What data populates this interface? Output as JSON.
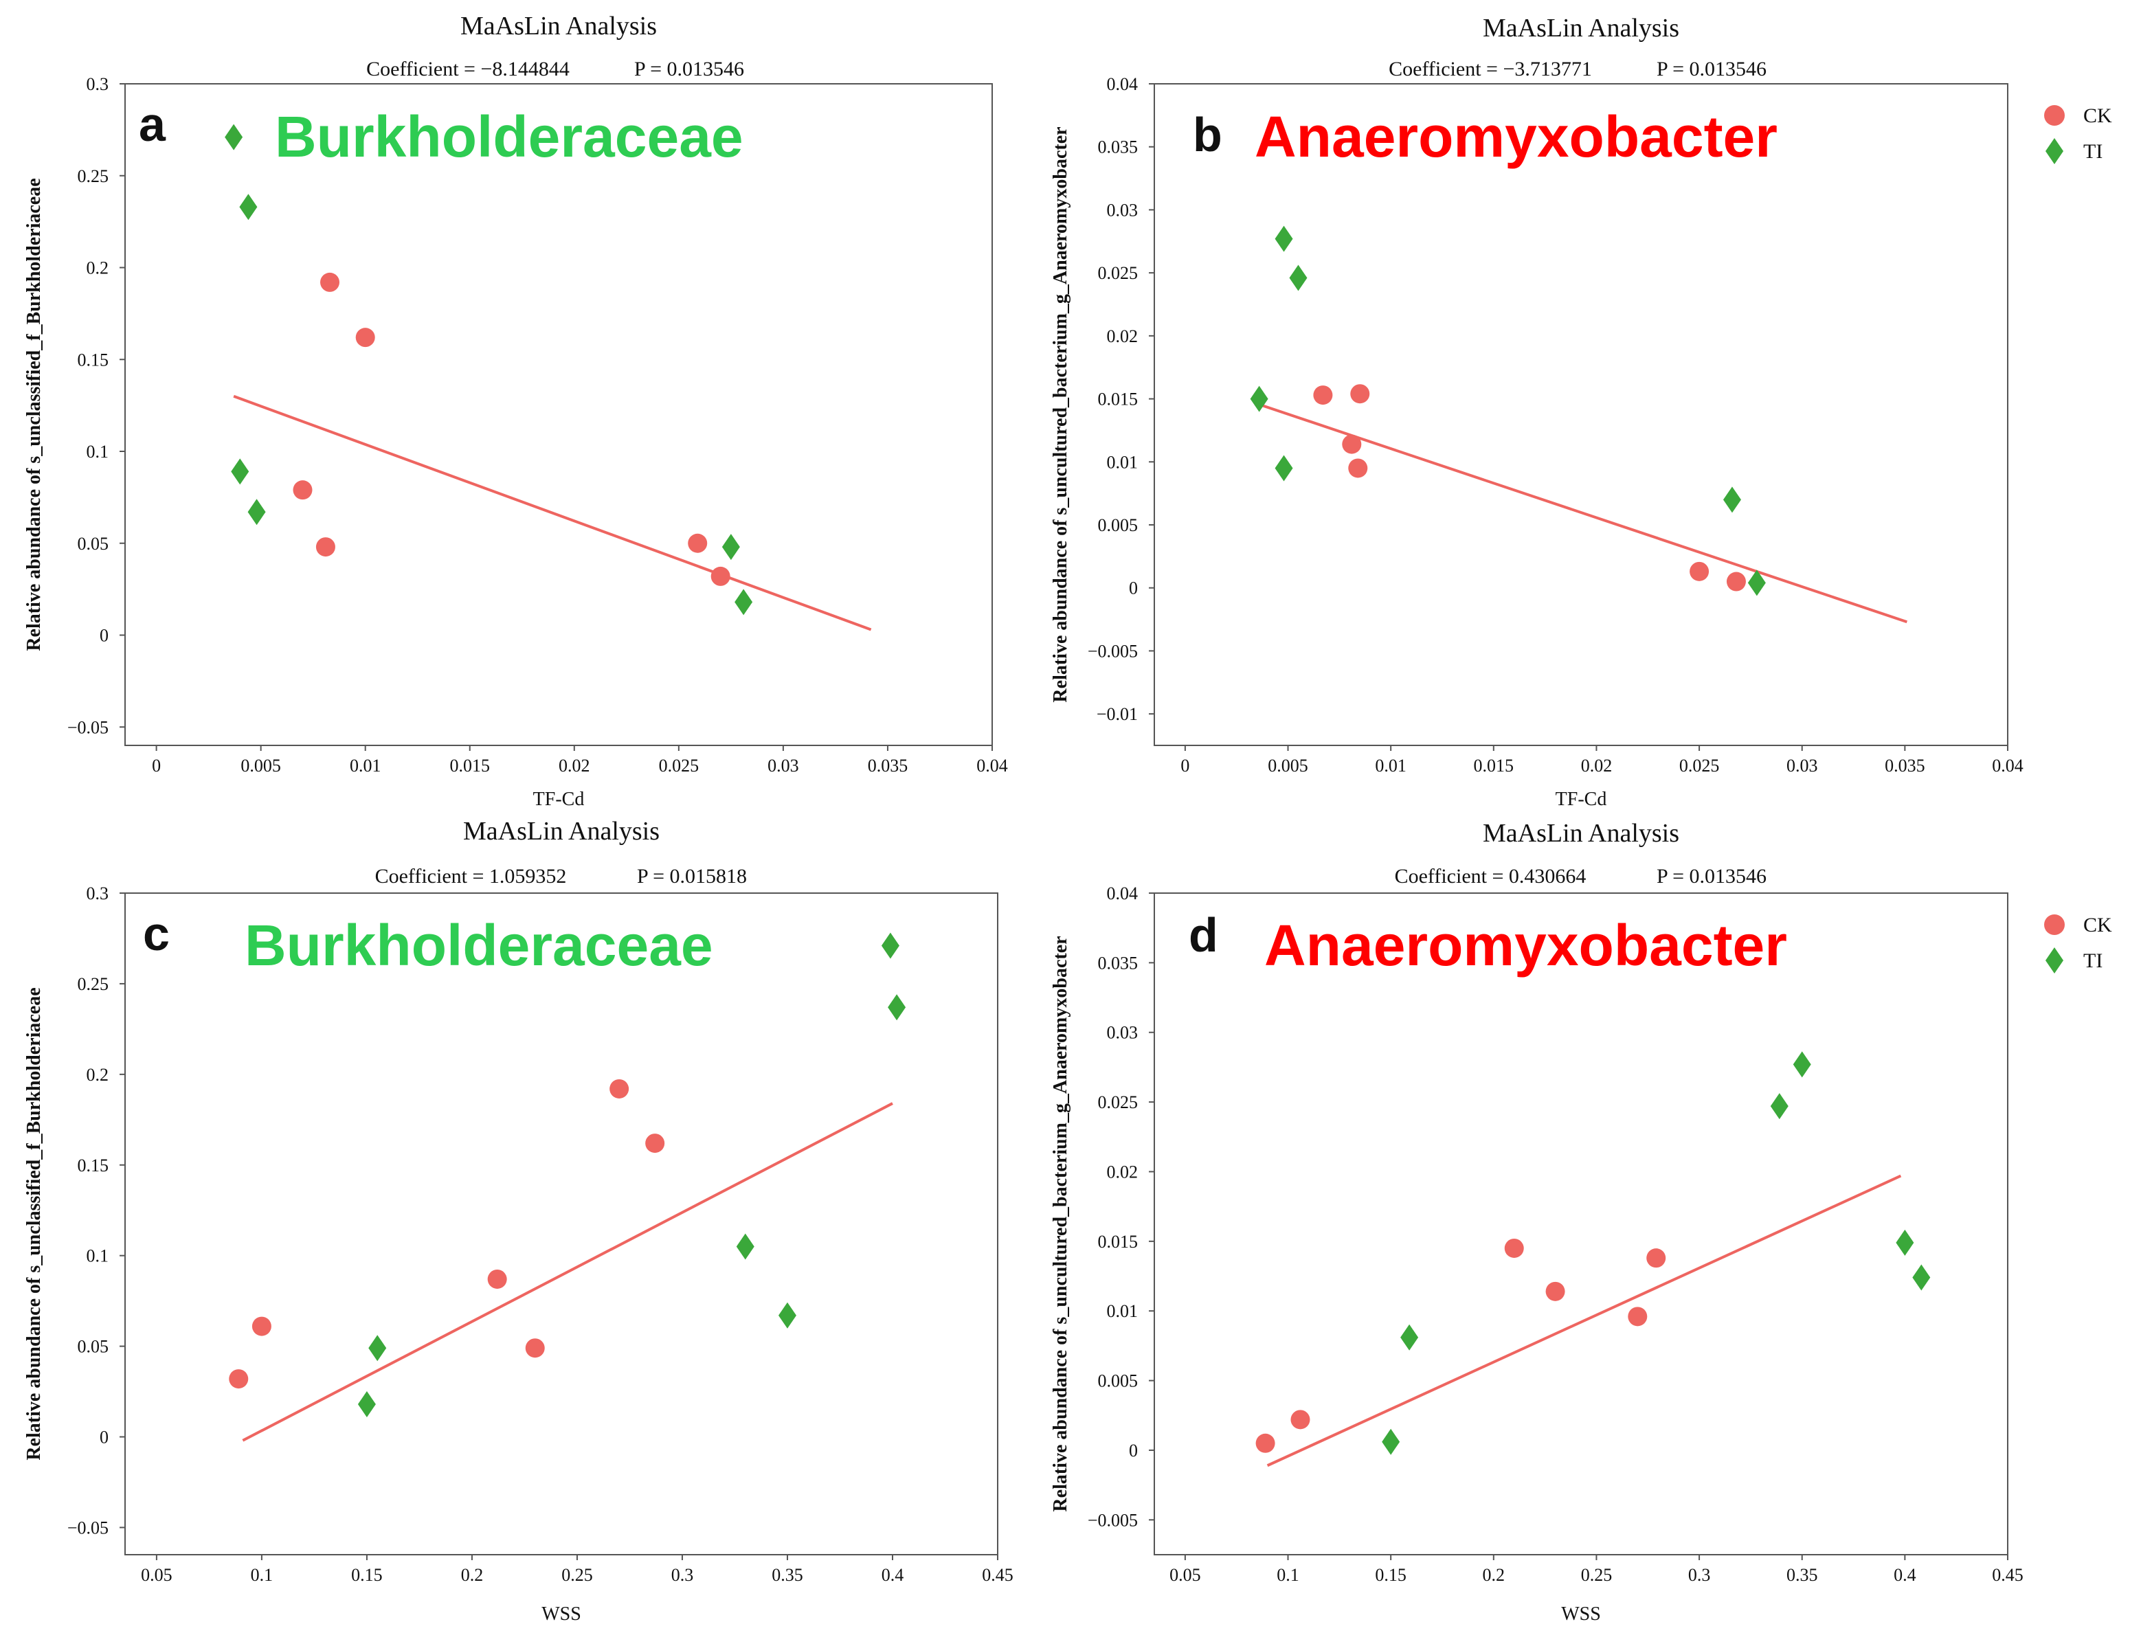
{
  "colors": {
    "CK": "#ee6560",
    "TI": "#3aa83a",
    "line": "#ee6560",
    "green_label": "#2ecc52",
    "red_label": "#ff0000"
  },
  "chart_data": [
    {
      "panel": "a",
      "type": "scatter",
      "title": "MaAsLin Analysis",
      "coefficient_text": "Coefficient = −8.144844",
      "p_text": "P = 0.013546",
      "label": "Burkholderaceae",
      "label_color": "green",
      "xlabel": "TF-Cd",
      "ylabel": "Relative abundance of s_unclassified_f_Burkholderiaceae",
      "xlim": [
        -0.0015,
        0.04
      ],
      "ylim": [
        -0.06,
        0.3
      ],
      "xticks": [
        0,
        0.005,
        0.01,
        0.015,
        0.02,
        0.025,
        0.03,
        0.035,
        0.04
      ],
      "xtick_labels": [
        "0",
        "0.005",
        "0.01",
        "0.015",
        "0.02",
        "0.025",
        "0.03",
        "0.035",
        "0.04"
      ],
      "yticks": [
        -0.05,
        0,
        0.05,
        0.1,
        0.15,
        0.2,
        0.25,
        0.3
      ],
      "ytick_labels": [
        "−0.05",
        "0",
        "0.05",
        "0.1",
        "0.15",
        "0.2",
        "0.25",
        "0.3"
      ],
      "show_legend": false,
      "series": [
        {
          "name": "CK",
          "marker": "circle",
          "points": [
            [
              0.0083,
              0.192
            ],
            [
              0.01,
              0.162
            ],
            [
              0.007,
              0.079
            ],
            [
              0.0081,
              0.048
            ],
            [
              0.0259,
              0.05
            ],
            [
              0.027,
              0.032
            ]
          ]
        },
        {
          "name": "TI",
          "marker": "diamond",
          "points": [
            [
              0.0037,
              0.271
            ],
            [
              0.0044,
              0.233
            ],
            [
              0.004,
              0.089
            ],
            [
              0.0048,
              0.067
            ],
            [
              0.0275,
              0.048
            ],
            [
              0.0281,
              0.018
            ]
          ]
        }
      ],
      "fit_line": [
        [
          0.0037,
          0.13
        ],
        [
          0.0342,
          0.003
        ]
      ]
    },
    {
      "panel": "b",
      "type": "scatter",
      "title": "MaAsLin Analysis",
      "coefficient_text": "Coefficient = −3.713771",
      "p_text": "P = 0.013546",
      "label": "Anaeromyxobacter",
      "label_color": "red",
      "xlabel": "TF-Cd",
      "ylabel": "Relative abundance of s_uncultured_bacterium_g_Anaeromyxobacter",
      "xlim": [
        -0.0015,
        0.04
      ],
      "ylim": [
        -0.0125,
        0.04
      ],
      "xticks": [
        0,
        0.005,
        0.01,
        0.015,
        0.02,
        0.025,
        0.03,
        0.035,
        0.04
      ],
      "xtick_labels": [
        "0",
        "0.005",
        "0.01",
        "0.015",
        "0.02",
        "0.025",
        "0.03",
        "0.035",
        "0.04"
      ],
      "yticks": [
        -0.01,
        -0.005,
        0,
        0.005,
        0.01,
        0.015,
        0.02,
        0.025,
        0.03,
        0.035,
        0.04
      ],
      "ytick_labels": [
        "−0.01",
        "−0.005",
        "0",
        "0.005",
        "0.01",
        "0.015",
        "0.02",
        "0.025",
        "0.03",
        "0.035",
        "0.04"
      ],
      "show_legend": true,
      "legend_position": "top-right outside",
      "series": [
        {
          "name": "CK",
          "marker": "circle",
          "points": [
            [
              0.0067,
              0.0153
            ],
            [
              0.0085,
              0.0154
            ],
            [
              0.0081,
              0.0114
            ],
            [
              0.0084,
              0.0095
            ],
            [
              0.025,
              0.0013
            ],
            [
              0.0268,
              0.0005
            ]
          ]
        },
        {
          "name": "TI",
          "marker": "diamond",
          "points": [
            [
              0.0048,
              0.0277
            ],
            [
              0.0055,
              0.0246
            ],
            [
              0.0036,
              0.015
            ],
            [
              0.0048,
              0.0095
            ],
            [
              0.0266,
              0.007
            ],
            [
              0.0278,
              0.0004
            ]
          ]
        }
      ],
      "fit_line": [
        [
          0.0037,
          0.0145
        ],
        [
          0.0351,
          -0.0027
        ]
      ]
    },
    {
      "panel": "c",
      "type": "scatter",
      "title": "MaAsLin Analysis",
      "coefficient_text": "Coefficient = 1.059352",
      "p_text": "P = 0.015818",
      "label": "Burkholderaceae",
      "label_color": "green",
      "xlabel": "WSS",
      "ylabel": "Relative abundance of s_unclassified_f_Burkholderiaceae",
      "xlim": [
        0.035,
        0.45
      ],
      "ylim": [
        -0.065,
        0.3
      ],
      "xticks": [
        0.05,
        0.1,
        0.15,
        0.2,
        0.25,
        0.3,
        0.35,
        0.4,
        0.45
      ],
      "xtick_labels": [
        "0.05",
        "0.1",
        "0.15",
        "0.2",
        "0.25",
        "0.3",
        "0.35",
        "0.4",
        "0.45"
      ],
      "yticks": [
        -0.05,
        0,
        0.05,
        0.1,
        0.15,
        0.2,
        0.25,
        0.3
      ],
      "ytick_labels": [
        "−0.05",
        "0",
        "0.05",
        "0.1",
        "0.15",
        "0.2",
        "0.25",
        "0.3"
      ],
      "show_legend": false,
      "series": [
        {
          "name": "CK",
          "marker": "circle",
          "points": [
            [
              0.089,
              0.032
            ],
            [
              0.1,
              0.061
            ],
            [
              0.212,
              0.087
            ],
            [
              0.23,
              0.049
            ],
            [
              0.27,
              0.192
            ],
            [
              0.287,
              0.162
            ]
          ]
        },
        {
          "name": "TI",
          "marker": "diamond",
          "points": [
            [
              0.399,
              0.271
            ],
            [
              0.402,
              0.237
            ],
            [
              0.33,
              0.105
            ],
            [
              0.35,
              0.067
            ],
            [
              0.155,
              0.049
            ],
            [
              0.15,
              0.018
            ]
          ]
        }
      ],
      "fit_line": [
        [
          0.091,
          -0.002
        ],
        [
          0.4,
          0.184
        ]
      ]
    },
    {
      "panel": "d",
      "type": "scatter",
      "title": "MaAsLin Analysis",
      "coefficient_text": "Coefficient = 0.430664",
      "p_text": "P = 0.013546",
      "label": "Anaeromyxobacter",
      "label_color": "red",
      "xlabel": "WSS",
      "ylabel": "Relative abundance of s_uncultured_bacterium_g_Anaeromyxobacter",
      "xlim": [
        0.035,
        0.45
      ],
      "ylim": [
        -0.0075,
        0.04
      ],
      "xticks": [
        0.05,
        0.1,
        0.15,
        0.2,
        0.25,
        0.3,
        0.35,
        0.4,
        0.45
      ],
      "xtick_labels": [
        "0.05",
        "0.1",
        "0.15",
        "0.2",
        "0.25",
        "0.3",
        "0.35",
        "0.4",
        "0.45"
      ],
      "yticks": [
        -0.005,
        0,
        0.005,
        0.01,
        0.015,
        0.02,
        0.025,
        0.03,
        0.035,
        0.04
      ],
      "ytick_labels": [
        "−0.005",
        "0",
        "0.005",
        "0.01",
        "0.015",
        "0.02",
        "0.025",
        "0.03",
        "0.035",
        "0.04"
      ],
      "show_legend": true,
      "legend_position": "top-right outside",
      "series": [
        {
          "name": "CK",
          "marker": "circle",
          "points": [
            [
              0.089,
              0.0005
            ],
            [
              0.106,
              0.0022
            ],
            [
              0.21,
              0.0145
            ],
            [
              0.23,
              0.0114
            ],
            [
              0.27,
              0.0096
            ],
            [
              0.279,
              0.0138
            ]
          ]
        },
        {
          "name": "TI",
          "marker": "diamond",
          "points": [
            [
              0.15,
              0.0006
            ],
            [
              0.159,
              0.0081
            ],
            [
              0.339,
              0.0247
            ],
            [
              0.35,
              0.0277
            ],
            [
              0.4,
              0.0149
            ],
            [
              0.408,
              0.0124
            ]
          ]
        }
      ],
      "fit_line": [
        [
          0.09,
          -0.0011
        ],
        [
          0.398,
          0.0197
        ]
      ]
    }
  ]
}
